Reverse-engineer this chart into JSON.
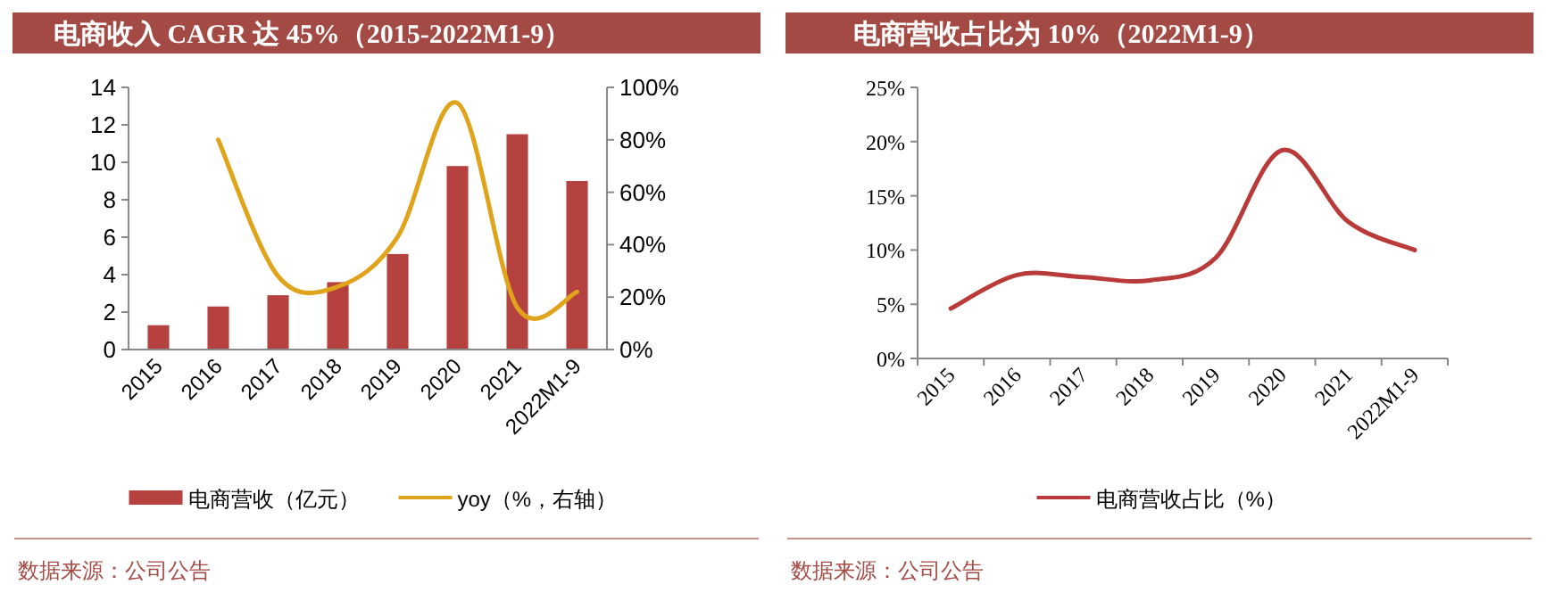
{
  "chart_data": [
    {
      "type": "bar",
      "title": "电商收入 CAGR 达 45%（2015-2022M1-9）",
      "categories": [
        "2015",
        "2016",
        "2017",
        "2018",
        "2019",
        "2020",
        "2021",
        "2022M1-9"
      ],
      "series": [
        {
          "name": "电商营收（亿元）",
          "color": "#b5423f",
          "values": [
            1.3,
            2.3,
            2.9,
            3.6,
            5.1,
            9.8,
            11.5,
            9.0
          ]
        },
        {
          "name": "yoy（%，右轴）",
          "type": "line",
          "axis": "y2",
          "color": "#e0a31c",
          "values": [
            null,
            80,
            28,
            24,
            43,
            94,
            16,
            22
          ]
        }
      ],
      "ylim": [
        0,
        14
      ],
      "yticks": [
        0,
        2,
        4,
        6,
        8,
        10,
        12,
        14
      ],
      "y2lim": [
        0,
        100
      ],
      "y2ticks": [
        {
          "value": 0,
          "label": "0%"
        },
        {
          "value": 20,
          "label": "20%"
        },
        {
          "value": 40,
          "label": "40%"
        },
        {
          "value": 60,
          "label": "60%"
        },
        {
          "value": 80,
          "label": "80%"
        },
        {
          "value": 100,
          "label": "100%"
        }
      ],
      "legend": "bottom",
      "grid": false,
      "annotations": [
        "数据来源：公司公告"
      ]
    },
    {
      "type": "line",
      "title": "电商营收占比为 10%（2022M1-9）",
      "categories": [
        "2015",
        "2016",
        "2017",
        "2018",
        "2019",
        "2020",
        "2021",
        "2022M1-9"
      ],
      "series": [
        {
          "name": "电商营收占比（%）",
          "color": "#b83b39",
          "values": [
            4.6,
            7.7,
            7.5,
            7.2,
            9.3,
            19.2,
            12.6,
            10.0
          ]
        }
      ],
      "ylim": [
        0,
        25
      ],
      "yticks": [
        {
          "value": 0,
          "label": "0%"
        },
        {
          "value": 5,
          "label": "5%"
        },
        {
          "value": 10,
          "label": "10%"
        },
        {
          "value": 15,
          "label": "15%"
        },
        {
          "value": 20,
          "label": "20%"
        },
        {
          "value": 25,
          "label": "25%"
        }
      ],
      "legend": "bottom",
      "grid": false,
      "annotations": [
        "数据来源：公司公告"
      ]
    }
  ]
}
